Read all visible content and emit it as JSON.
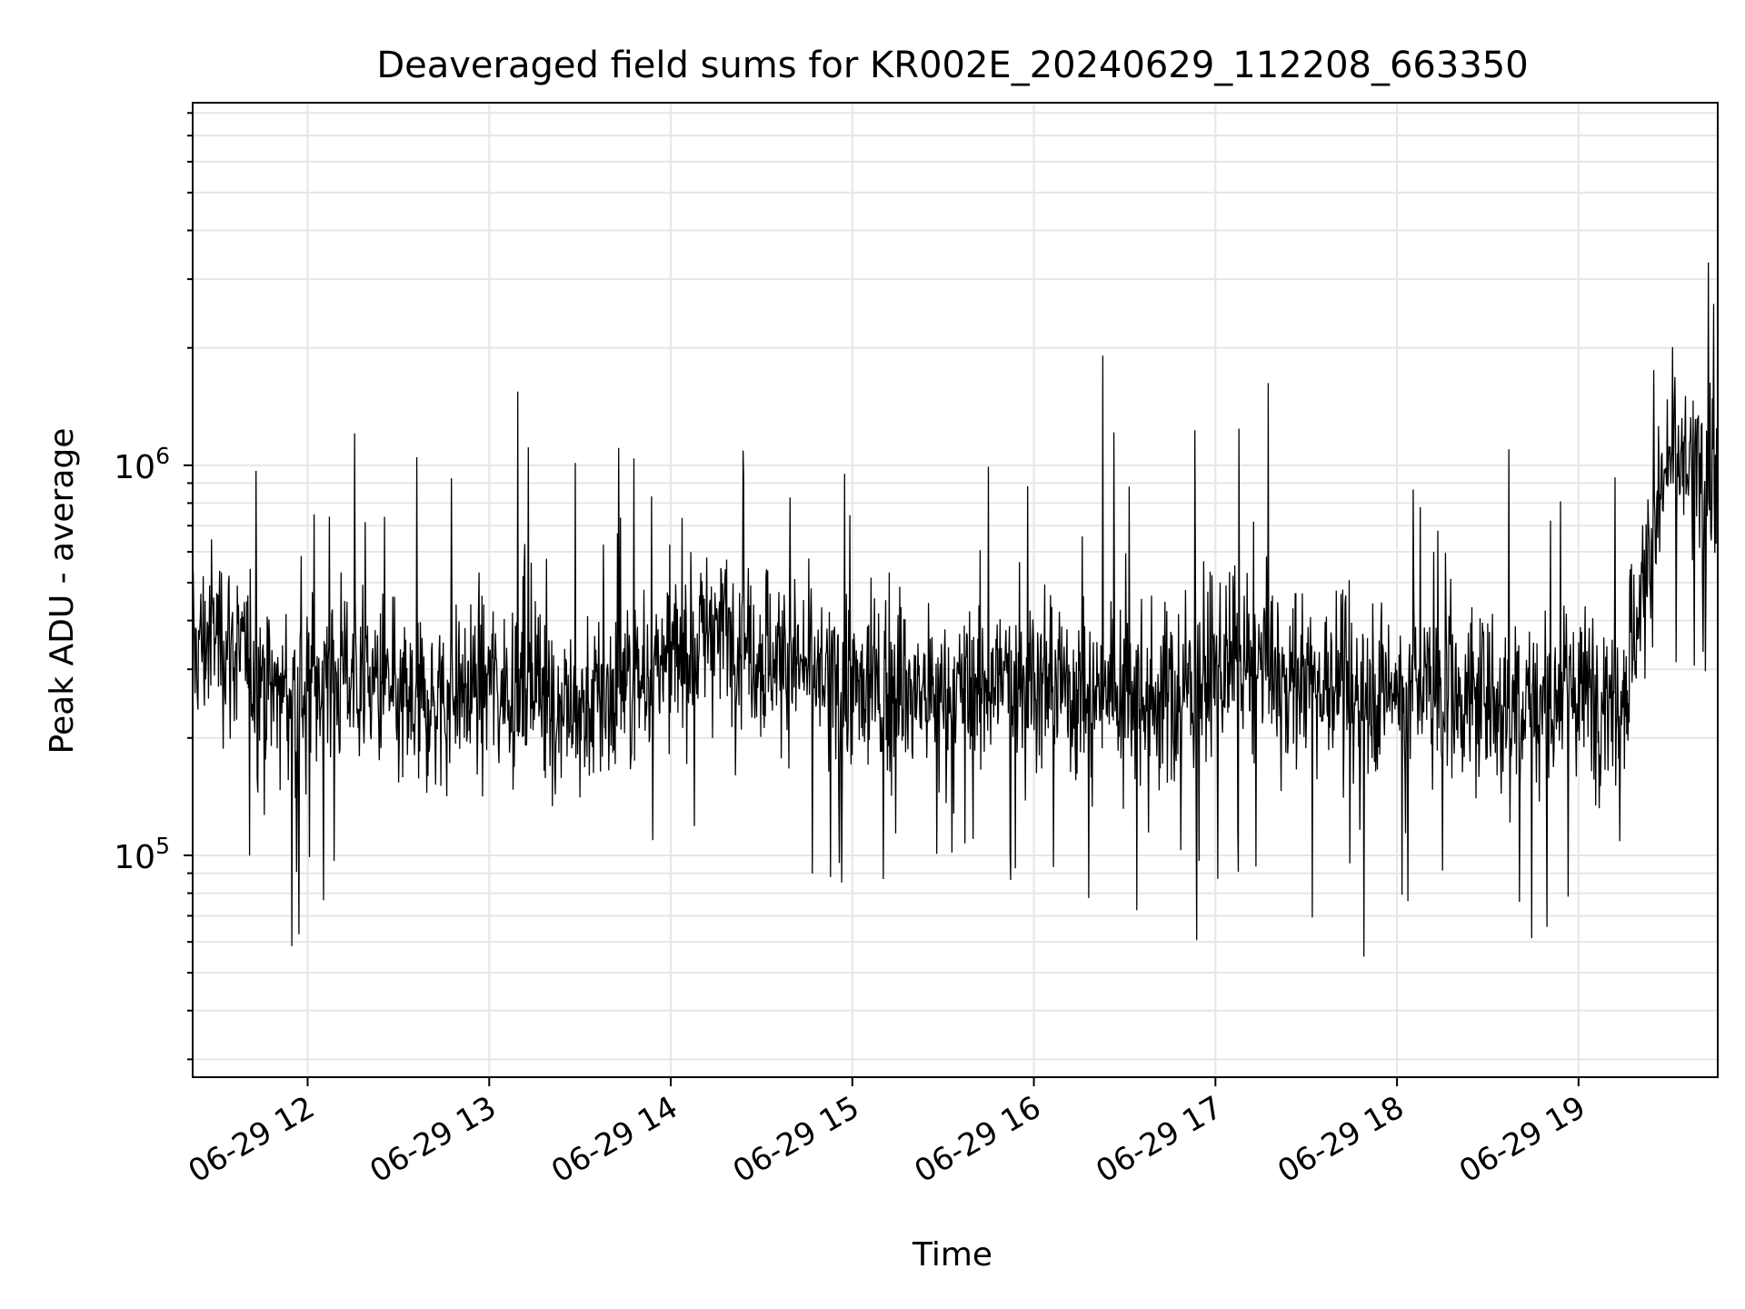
{
  "chart_data": {
    "type": "line",
    "title": "Deaveraged field sums for KR002E_20240629_112208_663350",
    "xlabel": "Time",
    "ylabel": "Peak ADU - average",
    "y_scale": "log",
    "ylim": [
      27000,
      8500000
    ],
    "xlim": [
      "2024-06-29 11:22",
      "2024-06-29 19:46"
    ],
    "x_ticks": [
      {
        "value": "2024-06-29 12:00",
        "label": "06-29 12"
      },
      {
        "value": "2024-06-29 13:00",
        "label": "06-29 13"
      },
      {
        "value": "2024-06-29 14:00",
        "label": "06-29 14"
      },
      {
        "value": "2024-06-29 15:00",
        "label": "06-29 15"
      },
      {
        "value": "2024-06-29 16:00",
        "label": "06-29 16"
      },
      {
        "value": "2024-06-29 17:00",
        "label": "06-29 17"
      },
      {
        "value": "2024-06-29 18:00",
        "label": "06-29 18"
      },
      {
        "value": "2024-06-29 19:00",
        "label": "06-29 19"
      }
    ],
    "y_ticks": [
      {
        "value": 100000,
        "label_base": "10",
        "label_exp": "5"
      },
      {
        "value": 1000000,
        "label_base": "10",
        "label_exp": "6"
      }
    ],
    "grid": true,
    "line_color": "#000000",
    "series": [
      {
        "x": [
          "2024-06-29 11:22",
          "2024-06-29 11:30",
          "2024-06-29 11:40",
          "2024-06-29 11:50",
          "2024-06-29 12:00",
          "2024-06-29 12:15",
          "2024-06-29 12:30",
          "2024-06-29 12:45",
          "2024-06-29 13:00",
          "2024-06-29 13:15",
          "2024-06-29 13:30",
          "2024-06-29 13:45",
          "2024-06-29 14:00",
          "2024-06-29 14:15",
          "2024-06-29 14:30",
          "2024-06-29 14:45",
          "2024-06-29 15:00",
          "2024-06-29 15:15",
          "2024-06-29 15:30",
          "2024-06-29 15:45",
          "2024-06-29 16:00",
          "2024-06-29 16:15",
          "2024-06-29 16:30",
          "2024-06-29 16:45",
          "2024-06-29 17:00",
          "2024-06-29 17:15",
          "2024-06-29 17:30",
          "2024-06-29 17:45",
          "2024-06-29 18:00",
          "2024-06-29 18:15",
          "2024-06-29 18:30",
          "2024-06-29 18:45",
          "2024-06-29 19:00",
          "2024-06-29 19:15",
          "2024-06-29 19:30",
          "2024-06-29 19:46"
        ],
        "values": [
          330000,
          380000,
          310000,
          260000,
          270000,
          300000,
          240000,
          250000,
          280000,
          270000,
          230000,
          270000,
          310000,
          400000,
          330000,
          300000,
          260000,
          270000,
          250000,
          280000,
          290000,
          260000,
          280000,
          250000,
          300000,
          290000,
          290000,
          270000,
          270000,
          260000,
          250000,
          250000,
          260000,
          270000,
          1050000,
          900000
        ]
      }
    ]
  }
}
